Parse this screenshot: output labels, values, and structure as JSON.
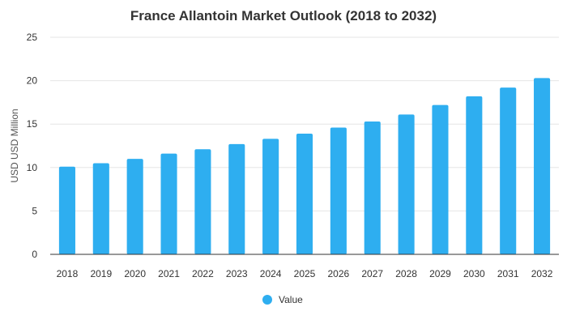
{
  "chart_data": {
    "type": "bar",
    "title": "France Allantoin Market Outlook (2018 to 2032)",
    "xlabel": "",
    "ylabel": "USD USD Million",
    "ylim": [
      0,
      25
    ],
    "yticks": [
      0,
      5,
      10,
      15,
      20,
      25
    ],
    "grid": true,
    "legend_position": "bottom-center",
    "categories": [
      "2018",
      "2019",
      "2020",
      "2021",
      "2022",
      "2023",
      "2024",
      "2025",
      "2026",
      "2027",
      "2028",
      "2029",
      "2030",
      "2031",
      "2032"
    ],
    "series": [
      {
        "name": "Value",
        "color": "#2eaef0",
        "values": [
          10.1,
          10.5,
          11.0,
          11.6,
          12.1,
          12.7,
          13.3,
          13.9,
          14.6,
          15.3,
          16.1,
          17.2,
          18.2,
          19.2,
          20.3
        ]
      }
    ]
  }
}
